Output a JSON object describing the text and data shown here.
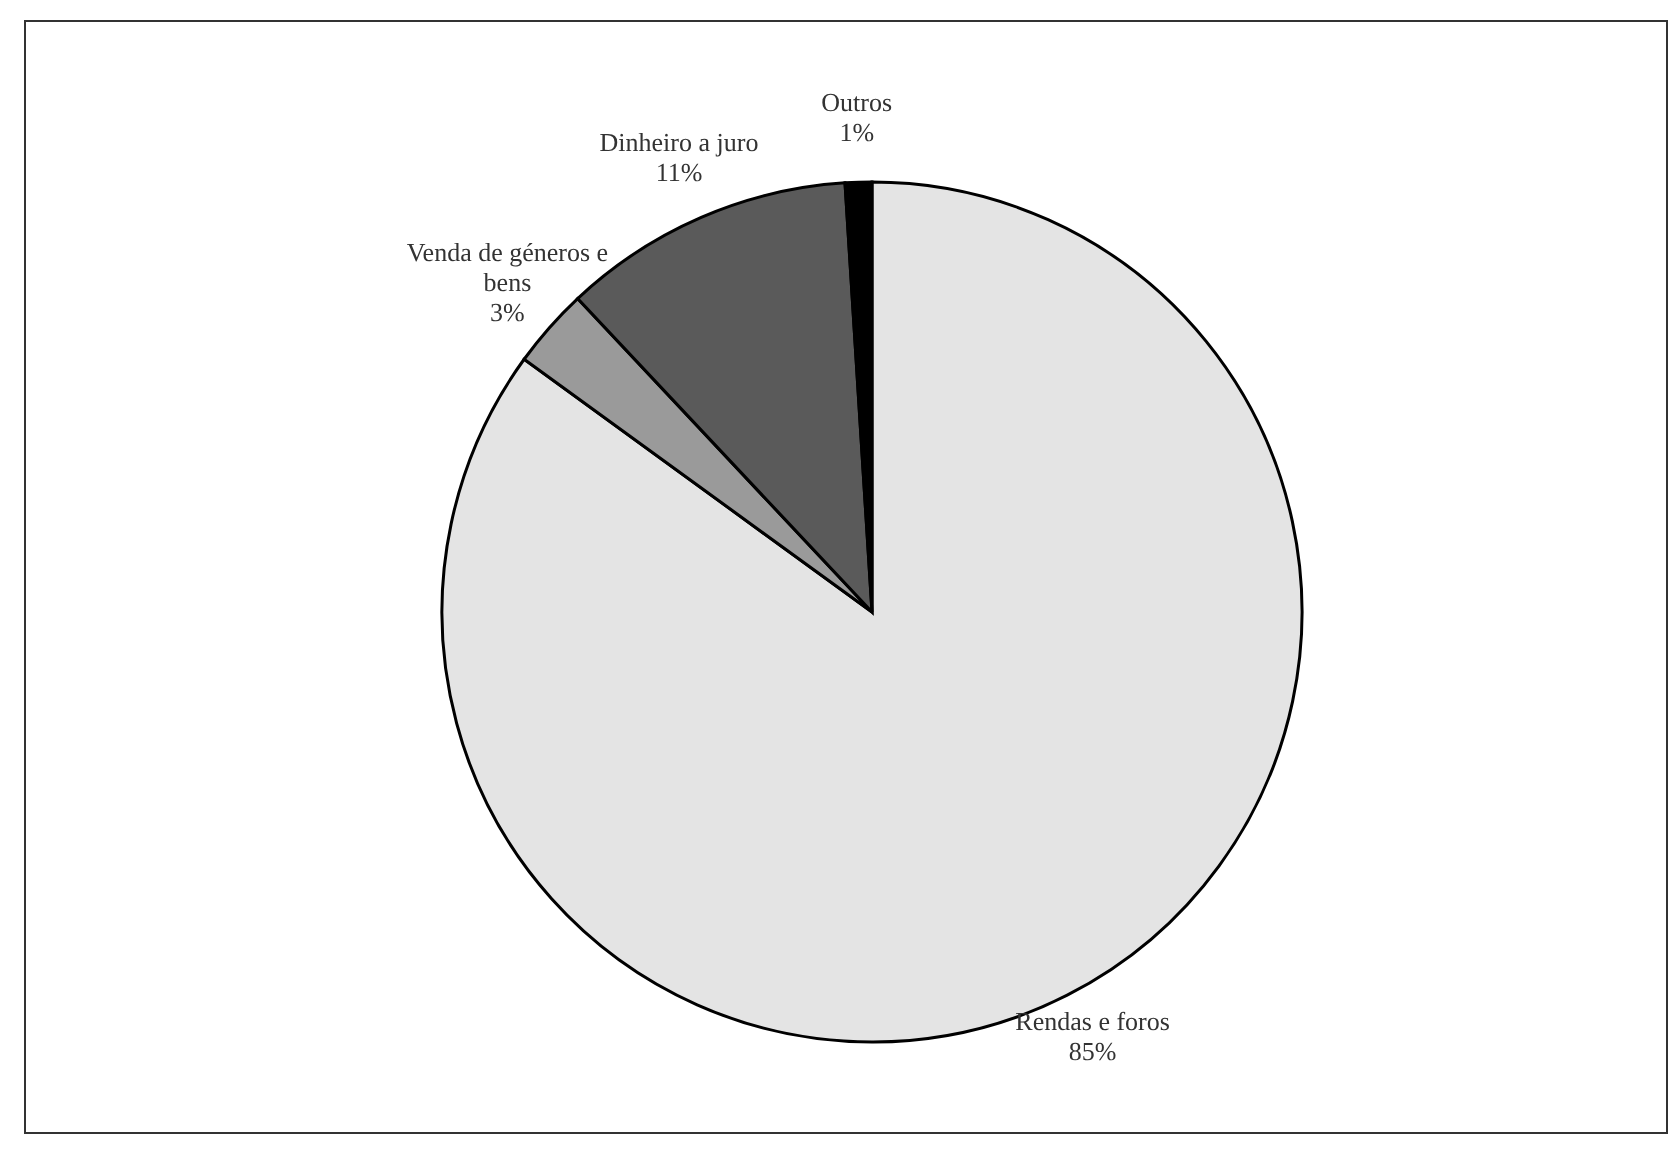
{
  "chart_data": {
    "type": "pie",
    "categories": [
      "Rendas e foros",
      "Venda de géneros e bens",
      "Dinheiro a juro",
      "Outros"
    ],
    "values": [
      85,
      3,
      11,
      1
    ],
    "value_labels": [
      "85%",
      "3%",
      "11%",
      "1%"
    ],
    "colors": [
      "#e4e4e4",
      "#9a9a9a",
      "#5a5a5a",
      "#000000"
    ],
    "legend": false
  }
}
